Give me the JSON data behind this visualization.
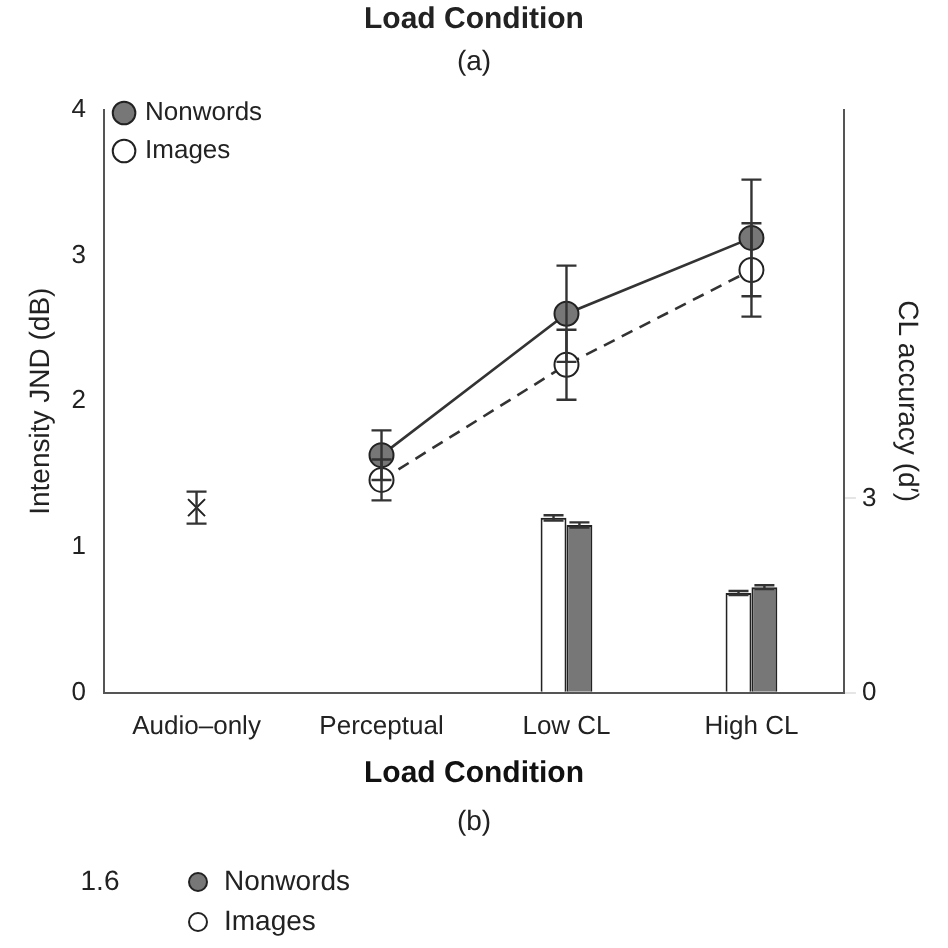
{
  "chart_data": {
    "type": "line",
    "categories": [
      "Audio–only",
      "Perceptual",
      "Low CL",
      "High CL"
    ],
    "series": [
      {
        "type": "scatter",
        "color": "#333333",
        "marker": "cross",
        "values": [
          1.27,
          null,
          null,
          null
        ],
        "errors": [
          0.11,
          null,
          null,
          null
        ]
      },
      {
        "name": "Nonwords",
        "color": "#777777",
        "marker": "circle",
        "line_style": "solid",
        "values": [
          null,
          1.63,
          2.6,
          3.12
        ],
        "errors": [
          null,
          0.17,
          0.33,
          0.4
        ]
      },
      {
        "name": "Images",
        "color": "#ffffff",
        "marker": "circle",
        "line_style": "dashed",
        "values": [
          null,
          1.46,
          2.25,
          2.9
        ],
        "errors": [
          null,
          0.14,
          0.24,
          0.32
        ]
      },
      {
        "type": "bar",
        "axis": "y2",
        "color": "#ffffff",
        "values": [
          null,
          null,
          2.7,
          1.54
        ],
        "errors": [
          null,
          null,
          0.04,
          0.03
        ]
      },
      {
        "type": "bar",
        "axis": "y2",
        "color": "#777777",
        "values": [
          null,
          null,
          2.59,
          1.63
        ],
        "errors": [
          null,
          null,
          0.04,
          0.03
        ]
      }
    ],
    "xlabel": "Load Condition",
    "ylabel": "Intensity JND (dB)",
    "y2label": "CL accuracy (d′)",
    "ylim": [
      0,
      4
    ],
    "yticks": [
      0,
      1,
      2,
      3,
      4
    ],
    "y2lim": [
      0,
      9
    ],
    "y2ticks": [
      0,
      3
    ],
    "legend": "top left",
    "grid": false,
    "annotations": [
      "Load Condition",
      "(a)",
      "(b)",
      "1.6",
      "Nonwords",
      "Images"
    ]
  }
}
